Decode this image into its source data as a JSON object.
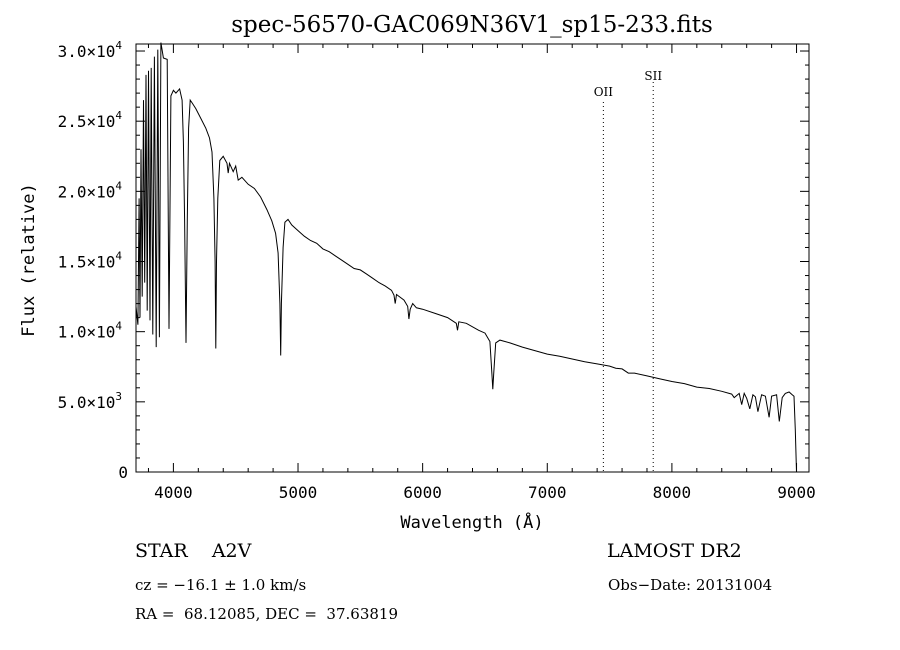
{
  "chart_data": {
    "type": "line",
    "title": "spec-56570-GAC069N36V1_sp15-233.fits",
    "xlabel": "Wavelength (Å)",
    "ylabel": "Flux (relative)",
    "xlim": [
      3700,
      9100
    ],
    "ylim": [
      0,
      30500
    ],
    "x_ticks": [
      {
        "value": 4000,
        "label": "4000"
      },
      {
        "value": 5000,
        "label": "5000"
      },
      {
        "value": 6000,
        "label": "6000"
      },
      {
        "value": 7000,
        "label": "7000"
      },
      {
        "value": 8000,
        "label": "8000"
      },
      {
        "value": 9000,
        "label": "9000"
      }
    ],
    "y_ticks": [
      {
        "value": 0,
        "mant": "0",
        "exp": ""
      },
      {
        "value": 5000,
        "mant": "5.0×10",
        "exp": "3"
      },
      {
        "value": 10000,
        "mant": "1.0×10",
        "exp": "4"
      },
      {
        "value": 15000,
        "mant": "1.5×10",
        "exp": "4"
      },
      {
        "value": 20000,
        "mant": "2.0×10",
        "exp": "4"
      },
      {
        "value": 25000,
        "mant": "2.5×10",
        "exp": "4"
      },
      {
        "value": 30000,
        "mant": "3.0×10",
        "exp": "4"
      }
    ],
    "series": [
      {
        "name": "spectrum",
        "points": [
          [
            3700,
            11800
          ],
          [
            3715,
            10500
          ],
          [
            3725,
            19500
          ],
          [
            3732,
            11000
          ],
          [
            3740,
            23000
          ],
          [
            3750,
            12500
          ],
          [
            3760,
            26500
          ],
          [
            3770,
            13500
          ],
          [
            3780,
            28300
          ],
          [
            3790,
            11500
          ],
          [
            3800,
            28600
          ],
          [
            3812,
            10800
          ],
          [
            3822,
            28800
          ],
          [
            3835,
            9800
          ],
          [
            3848,
            29600
          ],
          [
            3862,
            8900
          ],
          [
            3875,
            30100
          ],
          [
            3888,
            9600
          ],
          [
            3900,
            30600
          ],
          [
            3920,
            29500
          ],
          [
            3950,
            29400
          ],
          [
            3965,
            10200
          ],
          [
            3972,
            18000
          ],
          [
            3980,
            26800
          ],
          [
            4000,
            27200
          ],
          [
            4020,
            27000
          ],
          [
            4050,
            27300
          ],
          [
            4070,
            26500
          ],
          [
            4080,
            23500
          ],
          [
            4090,
            18000
          ],
          [
            4101,
            9200
          ],
          [
            4112,
            18000
          ],
          [
            4122,
            24500
          ],
          [
            4135,
            26500
          ],
          [
            4150,
            26300
          ],
          [
            4180,
            25900
          ],
          [
            4220,
            25200
          ],
          [
            4260,
            24500
          ],
          [
            4290,
            23800
          ],
          [
            4310,
            22800
          ],
          [
            4325,
            19500
          ],
          [
            4335,
            15000
          ],
          [
            4340,
            8800
          ],
          [
            4346,
            15000
          ],
          [
            4356,
            19500
          ],
          [
            4372,
            22200
          ],
          [
            4400,
            22500
          ],
          [
            4430,
            22000
          ],
          [
            4440,
            21300
          ],
          [
            4450,
            22000
          ],
          [
            4480,
            21400
          ],
          [
            4500,
            21800
          ],
          [
            4520,
            20800
          ],
          [
            4550,
            21000
          ],
          [
            4600,
            20500
          ],
          [
            4650,
            20200
          ],
          [
            4700,
            19600
          ],
          [
            4750,
            18700
          ],
          [
            4790,
            17900
          ],
          [
            4820,
            17000
          ],
          [
            4840,
            15600
          ],
          [
            4855,
            12000
          ],
          [
            4861,
            8300
          ],
          [
            4867,
            12000
          ],
          [
            4880,
            16000
          ],
          [
            4895,
            17800
          ],
          [
            4920,
            18000
          ],
          [
            4950,
            17600
          ],
          [
            5000,
            17200
          ],
          [
            5050,
            16800
          ],
          [
            5100,
            16500
          ],
          [
            5150,
            16300
          ],
          [
            5200,
            15900
          ],
          [
            5250,
            15700
          ],
          [
            5300,
            15400
          ],
          [
            5350,
            15100
          ],
          [
            5400,
            14800
          ],
          [
            5450,
            14500
          ],
          [
            5500,
            14400
          ],
          [
            5550,
            14100
          ],
          [
            5600,
            13800
          ],
          [
            5650,
            13500
          ],
          [
            5700,
            13250
          ],
          [
            5750,
            12950
          ],
          [
            5770,
            12600
          ],
          [
            5780,
            12000
          ],
          [
            5790,
            12650
          ],
          [
            5850,
            12250
          ],
          [
            5880,
            11800
          ],
          [
            5890,
            10900
          ],
          [
            5900,
            11600
          ],
          [
            5920,
            12000
          ],
          [
            5950,
            11700
          ],
          [
            6000,
            11600
          ],
          [
            6100,
            11300
          ],
          [
            6200,
            11000
          ],
          [
            6270,
            10600
          ],
          [
            6280,
            10100
          ],
          [
            6290,
            10700
          ],
          [
            6350,
            10600
          ],
          [
            6450,
            10100
          ],
          [
            6500,
            9900
          ],
          [
            6540,
            9300
          ],
          [
            6556,
            7000
          ],
          [
            6563,
            5900
          ],
          [
            6570,
            7000
          ],
          [
            6586,
            9200
          ],
          [
            6620,
            9400
          ],
          [
            6700,
            9200
          ],
          [
            6800,
            8900
          ],
          [
            6900,
            8650
          ],
          [
            7000,
            8400
          ],
          [
            7100,
            8250
          ],
          [
            7200,
            8050
          ],
          [
            7300,
            7850
          ],
          [
            7400,
            7700
          ],
          [
            7500,
            7550
          ],
          [
            7550,
            7400
          ],
          [
            7600,
            7350
          ],
          [
            7650,
            7050
          ],
          [
            7700,
            7050
          ],
          [
            7800,
            6850
          ],
          [
            7900,
            6650
          ],
          [
            8000,
            6450
          ],
          [
            8100,
            6300
          ],
          [
            8200,
            6050
          ],
          [
            8300,
            5950
          ],
          [
            8400,
            5750
          ],
          [
            8480,
            5550
          ],
          [
            8500,
            5300
          ],
          [
            8540,
            5600
          ],
          [
            8560,
            4800
          ],
          [
            8580,
            5600
          ],
          [
            8600,
            5250
          ],
          [
            8625,
            4500
          ],
          [
            8650,
            5500
          ],
          [
            8670,
            5350
          ],
          [
            8690,
            4300
          ],
          [
            8720,
            5500
          ],
          [
            8750,
            5400
          ],
          [
            8780,
            3900
          ],
          [
            8800,
            5400
          ],
          [
            8840,
            5500
          ],
          [
            8862,
            3600
          ],
          [
            8885,
            5300
          ],
          [
            8910,
            5600
          ],
          [
            8940,
            5700
          ],
          [
            8965,
            5500
          ],
          [
            8980,
            5400
          ],
          [
            8990,
            3000
          ],
          [
            9000,
            0
          ]
        ]
      }
    ],
    "markers": [
      {
        "label": "OII",
        "x": 7450
      },
      {
        "label": "SII",
        "x": 7850
      }
    ]
  },
  "info": {
    "object": "STAR    A2V",
    "survey": "LAMOST DR2",
    "cz": "cz = −16.1 ± 1.0 km/s",
    "obs_date": "Obs−Date: 20131004",
    "coords": "RA =  68.12085, DEC =  37.63819"
  }
}
